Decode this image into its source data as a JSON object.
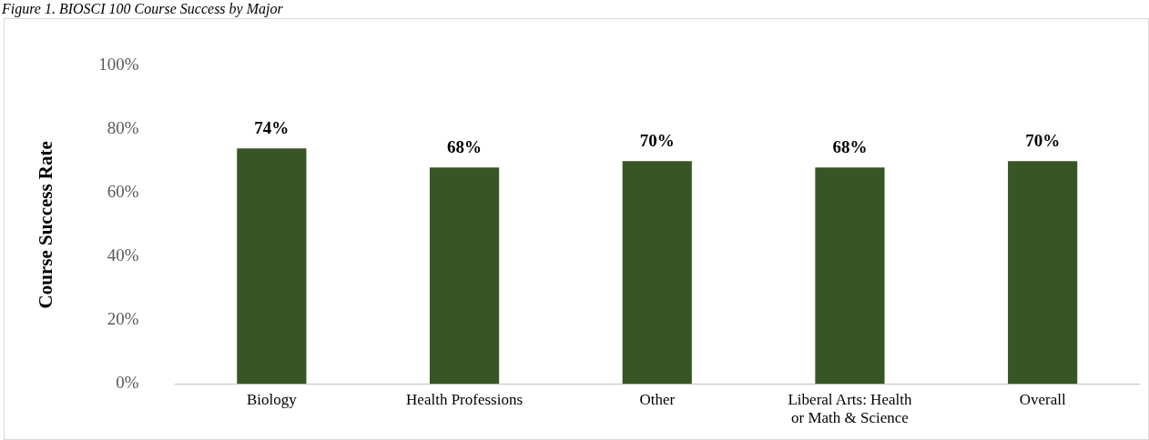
{
  "chart_data": {
    "type": "bar",
    "title": "Figure 1. BIOSCI 100 Course Success by Major",
    "ylabel": "Course Success Rate",
    "categories": [
      "Biology",
      "Health Professions",
      "Other",
      "Liberal Arts: Health or Math & Science",
      "Overall"
    ],
    "values": [
      74,
      68,
      70,
      68,
      70
    ],
    "color": "#375623",
    "ylim": [
      0,
      100
    ],
    "yticks": [
      {
        "value": 0,
        "label": "0%"
      },
      {
        "value": 20,
        "label": "20%"
      },
      {
        "value": 40,
        "label": "40%"
      },
      {
        "value": 60,
        "label": "60%"
      },
      {
        "value": 80,
        "label": "80%"
      },
      {
        "value": 100,
        "label": "100%"
      }
    ],
    "grid": false,
    "legend": false,
    "value_labels": [
      "74%",
      "68%",
      "70%",
      "68%",
      "70%"
    ]
  }
}
